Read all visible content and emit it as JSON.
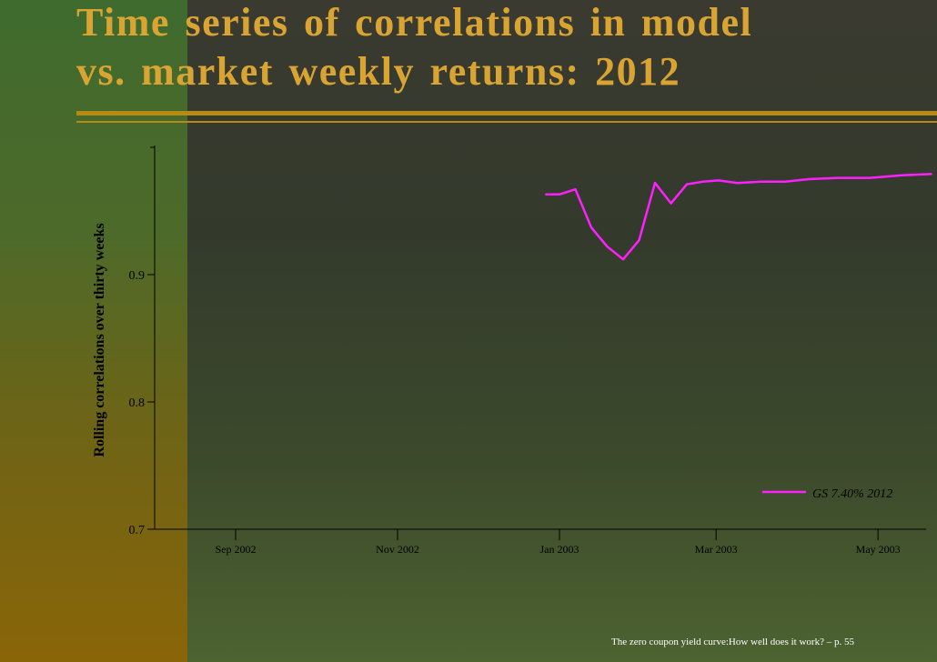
{
  "slide": {
    "title_line1": "Time series of correlations in model",
    "title_line2": "vs. market weekly returns: 2012",
    "footer": "The zero coupon yield curve:How well does it work? – p. 55"
  },
  "colors": {
    "title": "#d9a432",
    "series": "#ff1fff",
    "axis": "#000000"
  },
  "chart_data": {
    "type": "line",
    "ylabel": "Rolling correlations over thirty weeks",
    "xlabel": "",
    "ylim": [
      0.7,
      1.0
    ],
    "yticks": [
      "0.7",
      "0.8",
      "0.9"
    ],
    "xticks": [
      {
        "label": "Sep 2002",
        "date": "2002-09-01"
      },
      {
        "label": "Nov 2002",
        "date": "2002-11-01"
      },
      {
        "label": "Jan 2003",
        "date": "2003-01-01"
      },
      {
        "label": "Mar 2003",
        "date": "2003-03-01"
      },
      {
        "label": "May 2003",
        "date": "2003-05-01"
      }
    ],
    "xlim": [
      "2002-08-01",
      "2003-07-01"
    ],
    "legend": "bottom-right",
    "series": [
      {
        "name": "GS 7.40% 2012",
        "points": [
          [
            "2002-12-27",
            0.963
          ],
          [
            "2003-01-01",
            0.963
          ],
          [
            "2003-01-07",
            0.967
          ],
          [
            "2003-01-13",
            0.937
          ],
          [
            "2003-01-19",
            0.922
          ],
          [
            "2003-01-25",
            0.912
          ],
          [
            "2003-01-31",
            0.927
          ],
          [
            "2003-02-06",
            0.972
          ],
          [
            "2003-02-12",
            0.956
          ],
          [
            "2003-02-18",
            0.971
          ],
          [
            "2003-02-24",
            0.973
          ],
          [
            "2003-03-02",
            0.974
          ],
          [
            "2003-03-09",
            0.972
          ],
          [
            "2003-03-18",
            0.973
          ],
          [
            "2003-03-27",
            0.973
          ],
          [
            "2003-04-05",
            0.975
          ],
          [
            "2003-04-16",
            0.976
          ],
          [
            "2003-04-28",
            0.976
          ],
          [
            "2003-05-10",
            0.978
          ],
          [
            "2003-05-21",
            0.979
          ]
        ]
      }
    ]
  }
}
